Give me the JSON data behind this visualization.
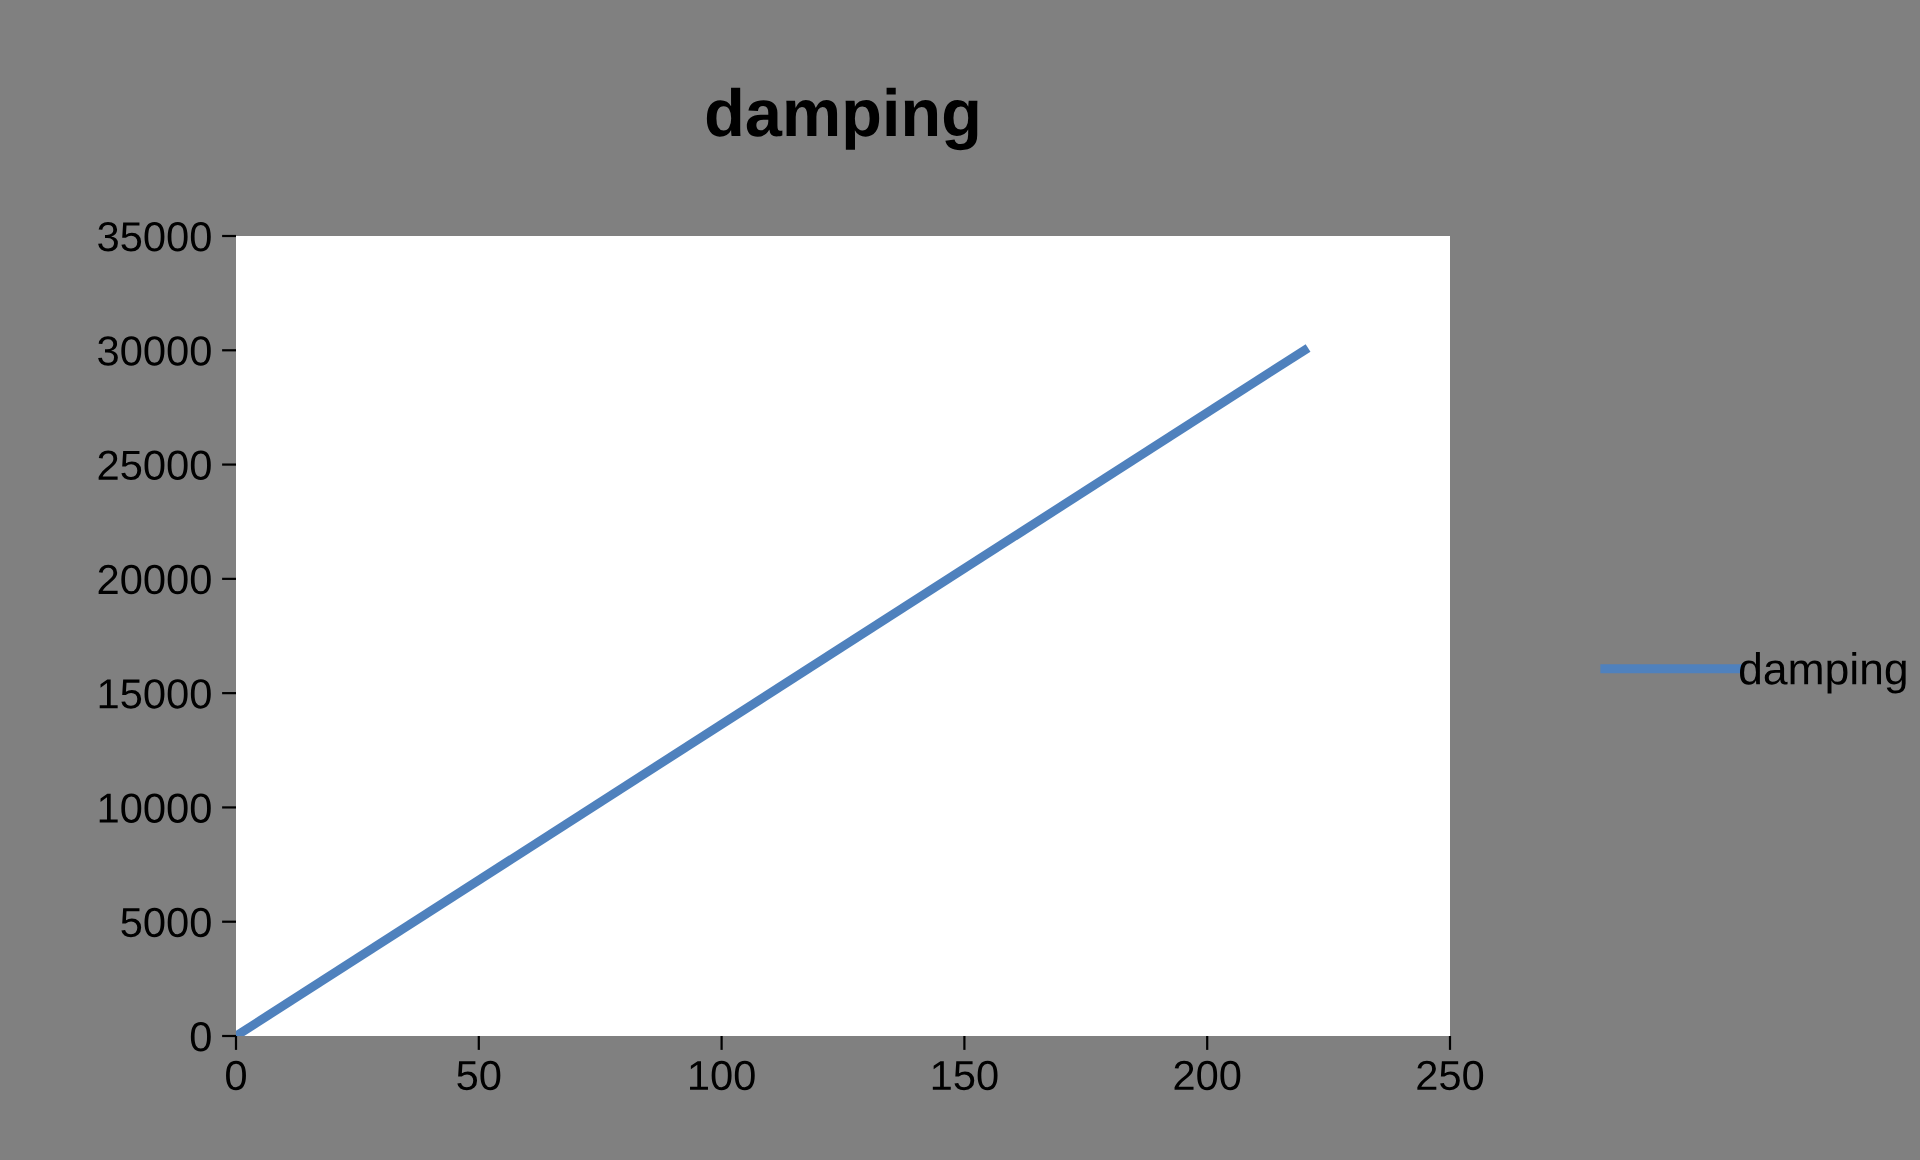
{
  "chart_data": {
    "type": "line",
    "title": "damping",
    "x": [
      0,
      220
    ],
    "series": [
      {
        "name": "damping",
        "color": "#4f81bd",
        "values": [
          0,
          30000
        ]
      }
    ],
    "xlim": [
      0,
      250
    ],
    "xticks": [
      0,
      50,
      100,
      150,
      200,
      250
    ],
    "ylim": [
      0,
      35000
    ],
    "yticks": [
      0,
      5000,
      10000,
      15000,
      20000,
      25000,
      30000,
      35000
    ],
    "grid": false,
    "legend": "right",
    "marker": "none",
    "line_style": "solid"
  }
}
